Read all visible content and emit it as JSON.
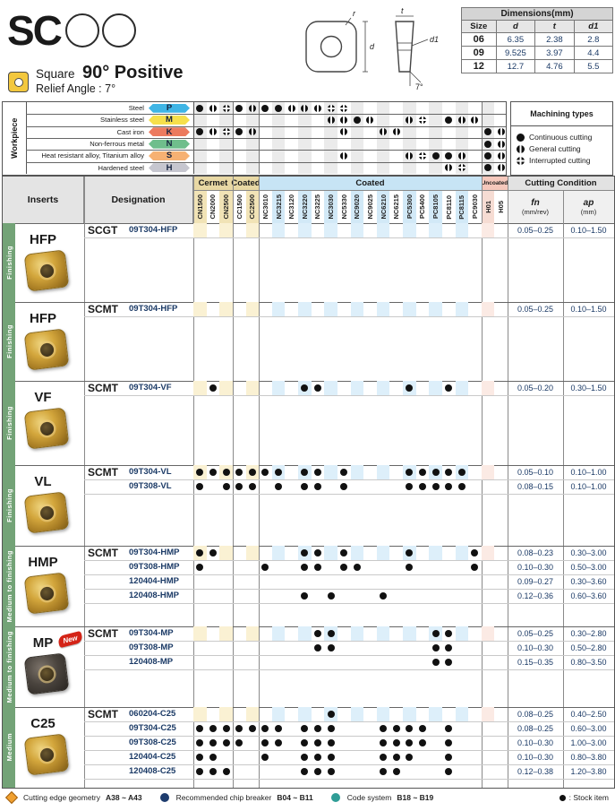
{
  "header": {
    "series": "SC",
    "shape_name": "Square",
    "geometry": "90° Positive",
    "relief": "Relief Angle : 7°",
    "diagram_labels": {
      "r": "r",
      "d": "d",
      "t": "t",
      "d1": "d1",
      "angle": "7°"
    }
  },
  "dimensions_table": {
    "title": "Dimensions(mm)",
    "columns": [
      "Size",
      "d",
      "t",
      "d1"
    ],
    "rows": [
      [
        "06",
        "6.35",
        "2.38",
        "2.8"
      ],
      [
        "09",
        "9.525",
        "3.97",
        "4.4"
      ],
      [
        "12",
        "12.7",
        "4.76",
        "5.5"
      ]
    ]
  },
  "workpiece": {
    "title": "Workpiece",
    "legend_title": "Machining types",
    "legend": [
      {
        "sym": "c",
        "label": "Continuous cutting"
      },
      {
        "sym": "g",
        "label": "General cutting"
      },
      {
        "sym": "i",
        "label": "Interrupted cutting"
      }
    ],
    "rows": [
      {
        "label": "Steel",
        "code": "P",
        "color": "#3FB5E5",
        "marks": {
          "0": "c",
          "1": "g",
          "2": "i",
          "3": "c",
          "4": "g",
          "5": "c",
          "6": "c",
          "7": "g",
          "8": "g",
          "9": "g",
          "10": "i",
          "11": "i"
        }
      },
      {
        "label": "Stainless steel",
        "code": "M",
        "color": "#F6E04B",
        "marks": {
          "10": "g",
          "11": "g",
          "12": "c",
          "13": "g",
          "16": "g",
          "17": "i",
          "19": "c",
          "20": "g",
          "21": "g"
        }
      },
      {
        "label": "Cast iron",
        "code": "K",
        "color": "#EC7A5E",
        "marks": {
          "0": "c",
          "1": "g",
          "2": "i",
          "3": "c",
          "4": "g",
          "11": "g",
          "14": "g",
          "15": "g",
          "22": "c",
          "23": "g"
        }
      },
      {
        "label": "Non-ferrous metal",
        "code": "N",
        "color": "#6FBE8C",
        "marks": {
          "22": "c",
          "23": "g"
        }
      },
      {
        "label": "Heat resistant alloy, Titanium alloy",
        "code": "S",
        "color": "#F6B173",
        "marks": {
          "11": "g",
          "16": "g",
          "17": "i",
          "18": "c",
          "19": "c",
          "20": "g",
          "22": "c",
          "23": "g"
        }
      },
      {
        "label": "Hardened steel",
        "code": "H",
        "color": "#C6C6CF",
        "marks": {
          "19": "g",
          "20": "i",
          "22": "c",
          "23": "g"
        }
      }
    ]
  },
  "grades": {
    "bands": [
      {
        "name": "Cermet",
        "from": 0,
        "to": 2,
        "tint": "tan"
      },
      {
        "name": "Coated",
        "from": 3,
        "to": 4,
        "tint": "tan"
      },
      {
        "name": "Coated",
        "from": 5,
        "to": 21,
        "tint": "blue"
      },
      {
        "name": "Uncoated",
        "from": 22,
        "to": 23,
        "tint": "pink"
      }
    ],
    "columns": [
      "CN1500",
      "CN2000",
      "CN2500",
      "CC1500",
      "CC2500",
      "NC3010",
      "NC3215",
      "NC3120",
      "NC3220",
      "NC3225",
      "NC3030",
      "NC5330",
      "NC9020",
      "NC9025",
      "NC6210",
      "NC6215",
      "PC5300",
      "PC5400",
      "PC8105",
      "PC8110",
      "PC8115",
      "PC9030",
      "H01",
      "H05"
    ]
  },
  "table": {
    "inserts_header": "Inserts",
    "designation_header": "Designation",
    "cutting_header": "Cutting Condition",
    "fn_label": "fn",
    "fn_unit": "(mm/rev)",
    "ap_label": "ap",
    "ap_unit": "(mm)",
    "groups": [
      {
        "side": "Finishing",
        "label": "HFP",
        "photo": "gold",
        "rows": [
          {
            "prefix": "SCGT",
            "code": "09T304-HFP",
            "dots": [],
            "fn": "0.05–0.25",
            "ap": "0.10–1.50"
          }
        ]
      },
      {
        "side": "Finishing",
        "label": "HFP",
        "photo": "gold",
        "rows": [
          {
            "prefix": "SCMT",
            "code": "09T304-HFP",
            "dots": [],
            "fn": "0.05–0.25",
            "ap": "0.10–1.50"
          }
        ]
      },
      {
        "side": "Finishing",
        "label": "VF",
        "photo": "gold",
        "rows": [
          {
            "prefix": "SCMT",
            "code": "09T304-VF",
            "dots": [
              1,
              8,
              9,
              16,
              19
            ],
            "fn": "0.05–0.20",
            "ap": "0.30–1.50"
          }
        ]
      },
      {
        "side": "Finishing",
        "label": "VL",
        "photo": "gold",
        "rows": [
          {
            "prefix": "SCMT",
            "code": "09T304-VL",
            "dots": [
              0,
              1,
              2,
              3,
              4,
              5,
              6,
              8,
              9,
              11,
              16,
              17,
              18,
              19,
              20
            ],
            "fn": "0.05–0.10",
            "ap": "0.10–1.00"
          },
          {
            "prefix": "",
            "code": "09T308-VL",
            "dots": [
              0,
              2,
              3,
              4,
              6,
              8,
              9,
              11,
              16,
              17,
              18,
              19,
              20
            ],
            "fn": "0.08–0.15",
            "ap": "0.10–1.00"
          }
        ]
      },
      {
        "side": "Medium to finishing",
        "label": "HMP",
        "photo": "gold",
        "rows": [
          {
            "prefix": "SCMT",
            "code": "09T304-HMP",
            "dots": [
              0,
              1,
              8,
              9,
              11,
              16,
              21
            ],
            "fn": "0.08–0.23",
            "ap": "0.30–3.00"
          },
          {
            "prefix": "",
            "code": "09T308-HMP",
            "dots": [
              0,
              5,
              8,
              9,
              11,
              12,
              16,
              21
            ],
            "fn": "0.10–0.30",
            "ap": "0.50–3.00"
          },
          {
            "prefix": "",
            "code": "120404-HMP",
            "dots": [],
            "fn": "0.09–0.27",
            "ap": "0.30–3.60"
          },
          {
            "prefix": "",
            "code": "120408-HMP",
            "dots": [
              8,
              10,
              14
            ],
            "fn": "0.12–0.36",
            "ap": "0.60–3.60"
          }
        ]
      },
      {
        "side": "Medium to finishing",
        "label": "MP",
        "new_badge": "New",
        "photo": "dark",
        "rows": [
          {
            "prefix": "SCMT",
            "code": "09T304-MP",
            "dots": [
              9,
              10,
              18,
              19
            ],
            "fn": "0.05–0.25",
            "ap": "0.30–2.80"
          },
          {
            "prefix": "",
            "code": "09T308-MP",
            "dots": [
              9,
              10,
              18,
              19
            ],
            "fn": "0.10–0.30",
            "ap": "0.50–2.80"
          },
          {
            "prefix": "",
            "code": "120408-MP",
            "dots": [
              18,
              19
            ],
            "fn": "0.15–0.35",
            "ap": "0.80–3.50"
          }
        ]
      },
      {
        "side": "Medium",
        "label": "C25",
        "photo": "gold",
        "rows": [
          {
            "prefix": "SCMT",
            "code": "060204-C25",
            "dots": [
              10
            ],
            "fn": "0.08–0.25",
            "ap": "0.40–2.50"
          },
          {
            "prefix": "",
            "code": "09T304-C25",
            "dots": [
              0,
              1,
              2,
              3,
              4,
              5,
              6,
              8,
              9,
              10,
              14,
              15,
              16,
              17,
              19
            ],
            "fn": "0.08–0.25",
            "ap": "0.60–3.00"
          },
          {
            "prefix": "",
            "code": "09T308-C25",
            "dots": [
              0,
              1,
              2,
              3,
              5,
              6,
              8,
              9,
              10,
              14,
              15,
              16,
              17,
              19
            ],
            "fn": "0.10–0.30",
            "ap": "1.00–3.00"
          },
          {
            "prefix": "",
            "code": "120404-C25",
            "dots": [
              0,
              1,
              5,
              8,
              9,
              10,
              14,
              15,
              16,
              19
            ],
            "fn": "0.10–0.30",
            "ap": "0.80–3.80"
          },
          {
            "prefix": "",
            "code": "120408-C25",
            "dots": [
              0,
              1,
              2,
              8,
              9,
              10,
              14,
              15,
              19
            ],
            "fn": "0.12–0.38",
            "ap": "1.20–3.80"
          }
        ]
      }
    ]
  },
  "footer": {
    "items": [
      {
        "icon": "diamond-orange",
        "label": "Cutting edge geometry",
        "pages": "A38 ~ A43"
      },
      {
        "icon": "circle-navy",
        "label": "Recommended chip breaker",
        "pages": "B04 ~ B11"
      },
      {
        "icon": "circle-teal",
        "label": "Code system",
        "pages": "B18 ~ B19"
      }
    ],
    "stock_label": ": Stock item"
  },
  "colors": {
    "green_bar": "#73A377",
    "band_tan": "#E8D8A4",
    "band_blue": "#C7E4F5",
    "band_pink": "#F5C8BC",
    "band_gray": "#E2E2E2",
    "tint_tan": "#FAF1D3",
    "tint_blue": "#DDEFFA",
    "tint_pink": "#FBEAE4",
    "head_tan": "#F1E3B6",
    "head_blue": "#D2E9F7",
    "head_pink": "#F6DCD3",
    "wp_gray": "#EBEBEB",
    "navy_text": "#1b3a66"
  }
}
